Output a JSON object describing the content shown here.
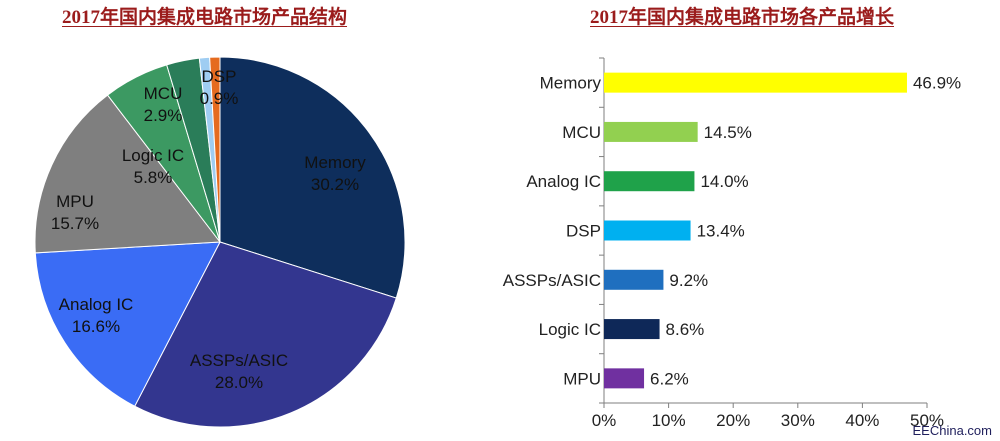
{
  "chart_data": [
    {
      "type": "pie",
      "title": "2017年国内集成电路市场产品结构",
      "slices": [
        {
          "label": "Memory",
          "value": 30.2,
          "value_label": "30.2%",
          "color": "#0e2e5c"
        },
        {
          "label": "ASSPs/ASIC",
          "value": 28.0,
          "value_label": "28.0%",
          "color": "#33368f"
        },
        {
          "label": "Analog IC",
          "value": 16.6,
          "value_label": "16.6%",
          "color": "#3a6cf5"
        },
        {
          "label": "MPU",
          "value": 15.7,
          "value_label": "15.7%",
          "color": "#7f7f7f"
        },
        {
          "label": "Logic IC",
          "value": 5.8,
          "value_label": "5.8%",
          "color": "#3c9962"
        },
        {
          "label": "MCU",
          "value": 2.9,
          "value_label": "2.9%",
          "color": "#2a7d59"
        },
        {
          "label": "",
          "value": 0.9,
          "value_label": "",
          "color": "#9fcdf2"
        },
        {
          "label": "DSP",
          "value": 0.9,
          "value_label": "0.9%",
          "color": "#e56b1f"
        }
      ]
    },
    {
      "type": "bar",
      "orientation": "horizontal",
      "title": "2017年国内集成电路市场各产品增长",
      "categories": [
        "Memory",
        "MCU",
        "Analog IC",
        "DSP",
        "ASSPs/ASIC",
        "Logic IC",
        "MPU"
      ],
      "values": [
        46.9,
        14.5,
        14.0,
        13.4,
        9.2,
        8.6,
        6.2
      ],
      "value_labels": [
        "46.9%",
        "14.5%",
        "14.0%",
        "13.4%",
        "9.2%",
        "8.6%",
        "6.2%"
      ],
      "colors": [
        "#ffff00",
        "#92d050",
        "#1fa24a",
        "#00b0f0",
        "#1f6fbf",
        "#0e2858",
        "#7030a0"
      ],
      "xlim": [
        0,
        50
      ],
      "x_ticks": [
        "0%",
        "10%",
        "20%",
        "30%",
        "40%",
        "50%"
      ],
      "grid": false
    }
  ],
  "watermark": "EEChina.com"
}
